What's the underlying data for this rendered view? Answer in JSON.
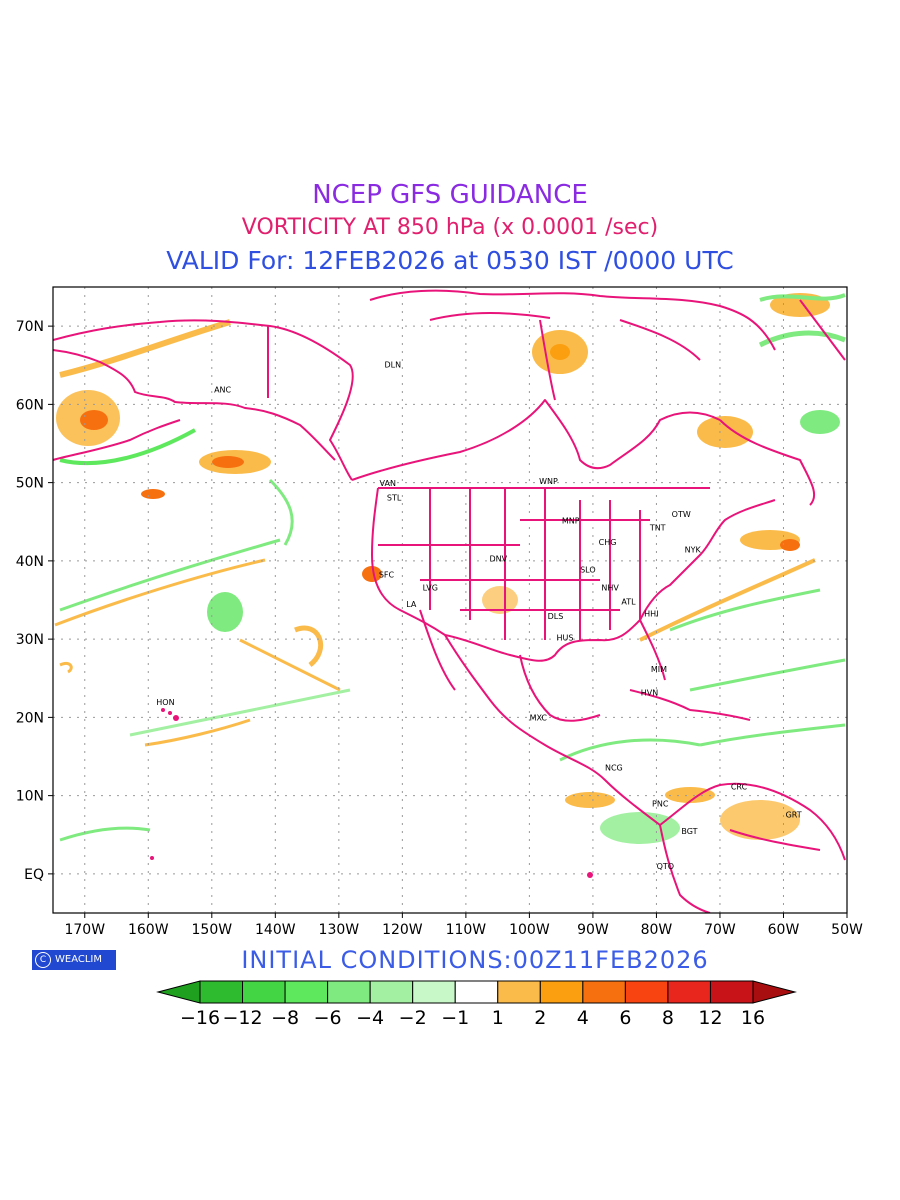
{
  "titles": {
    "line1": "NCEP GFS GUIDANCE",
    "line2": "VORTICITY AT 850 hPa (x 0.0001 /sec)",
    "line3": "VALID For: 12FEB2026 at 0530 IST /0000 UTC"
  },
  "initial_conditions": "INITIAL CONDITIONS:00Z11FEB2026",
  "badge": {
    "symbol": "C",
    "label": "WEACLIM"
  },
  "map": {
    "lon_range": [
      -175,
      -50
    ],
    "lat_range": [
      -5,
      75
    ],
    "lon_tick_labels": [
      "170W",
      "160W",
      "150W",
      "140W",
      "130W",
      "120W",
      "110W",
      "100W",
      "90W",
      "80W",
      "70W",
      "60W",
      "50W"
    ],
    "lat_tick_labels": [
      "EQ",
      "10N",
      "20N",
      "30N",
      "40N",
      "50N",
      "60N",
      "70N"
    ],
    "grid": true,
    "border_color": "#e8147a",
    "cities": [
      {
        "code": "DLN",
        "lon": -121.5,
        "lat": 64.7
      },
      {
        "code": "ANC",
        "lon": -148.3,
        "lat": 61.5
      },
      {
        "code": "VAN",
        "lon": -122.3,
        "lat": 49.6
      },
      {
        "code": "STL",
        "lon": -121.3,
        "lat": 47.7
      },
      {
        "code": "WNP",
        "lon": -97.0,
        "lat": 49.8
      },
      {
        "code": "MNP",
        "lon": -93.5,
        "lat": 44.8
      },
      {
        "code": "OTW",
        "lon": -76.1,
        "lat": 45.6
      },
      {
        "code": "TNT",
        "lon": -79.8,
        "lat": 43.9
      },
      {
        "code": "CHG",
        "lon": -87.7,
        "lat": 42.0
      },
      {
        "code": "NYK",
        "lon": -74.3,
        "lat": 41.1
      },
      {
        "code": "SFC",
        "lon": -122.5,
        "lat": 37.9
      },
      {
        "code": "DNV",
        "lon": -104.9,
        "lat": 39.9
      },
      {
        "code": "SLO",
        "lon": -90.8,
        "lat": 38.5
      },
      {
        "code": "LVG",
        "lon": -115.6,
        "lat": 36.2
      },
      {
        "code": "NHV",
        "lon": -87.3,
        "lat": 36.2
      },
      {
        "code": "LA",
        "lon": -118.6,
        "lat": 34.1
      },
      {
        "code": "ATL",
        "lon": -84.4,
        "lat": 34.4
      },
      {
        "code": "DLS",
        "lon": -95.9,
        "lat": 32.6
      },
      {
        "code": "HHI",
        "lon": -80.8,
        "lat": 32.9
      },
      {
        "code": "HUS",
        "lon": -94.4,
        "lat": 29.8
      },
      {
        "code": "MIM",
        "lon": -79.6,
        "lat": 25.8
      },
      {
        "code": "HVN",
        "lon": -81.1,
        "lat": 22.8
      },
      {
        "code": "HON",
        "lon": -157.3,
        "lat": 21.6
      },
      {
        "code": "MXC",
        "lon": -98.6,
        "lat": 19.6
      },
      {
        "code": "NCG",
        "lon": -86.7,
        "lat": 13.2
      },
      {
        "code": "CRC",
        "lon": -67.0,
        "lat": 10.8
      },
      {
        "code": "PNC",
        "lon": -79.4,
        "lat": 8.6
      },
      {
        "code": "GRT",
        "lon": -58.4,
        "lat": 7.2
      },
      {
        "code": "BGT",
        "lon": -74.8,
        "lat": 5.1
      },
      {
        "code": "QTO",
        "lon": -78.6,
        "lat": 0.6
      }
    ]
  },
  "colorbar": {
    "labels": [
      "-16",
      "-12",
      "-8",
      "-6",
      "-4",
      "-2",
      "-1",
      "1",
      "2",
      "4",
      "6",
      "8",
      "12",
      "16"
    ],
    "colors": [
      "#1fa01f",
      "#2fbb2f",
      "#44d544",
      "#5ee85e",
      "#7fea7f",
      "#a3f0a3",
      "#c8f8c8",
      "#ffffff",
      "#fbbb4a",
      "#fb9f10",
      "#f77010",
      "#f74410",
      "#e8261e",
      "#c81418",
      "#a80e10"
    ]
  }
}
